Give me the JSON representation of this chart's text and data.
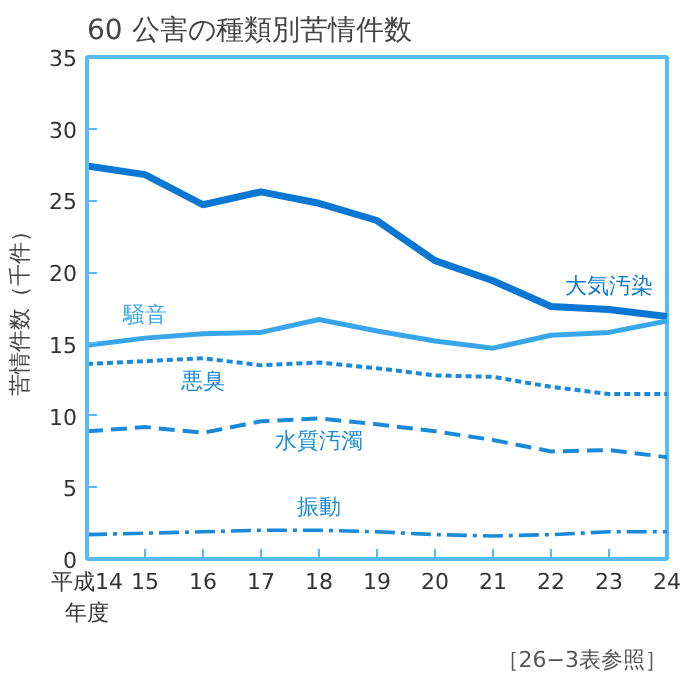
{
  "chart_data": {
    "type": "line",
    "title": "60 公害の種類別苦情件数",
    "ylabel": "苦情件数（千件）",
    "x": [
      14,
      15,
      16,
      17,
      18,
      19,
      20,
      21,
      22,
      23,
      24
    ],
    "xlim": [
      14,
      24
    ],
    "xticks": [
      {
        "value": 14,
        "label": "平成14\n年度"
      },
      15,
      16,
      17,
      18,
      19,
      20,
      21,
      22,
      23,
      24
    ],
    "ylim": [
      0,
      35
    ],
    "yticks": [
      0,
      5,
      10,
      15,
      20,
      25,
      30,
      35
    ],
    "grid": false,
    "legend": false,
    "marker": "none",
    "series": [
      {
        "name": "大気汚染",
        "color": "#0a78d2",
        "line_style": "solid",
        "values": [
          27.4,
          26.8,
          24.7,
          25.6,
          24.8,
          23.6,
          20.8,
          19.4,
          17.6,
          17.4,
          16.9
        ]
      },
      {
        "name": "騒音",
        "color": "#3aa6ea",
        "line_style": "solid",
        "values": [
          14.9,
          15.4,
          15.7,
          15.8,
          16.7,
          15.9,
          15.2,
          14.7,
          15.6,
          15.8,
          16.6
        ]
      },
      {
        "name": "悪臭",
        "color": "#1a8ad8",
        "line_style": "dotted",
        "values": [
          13.6,
          13.8,
          14.0,
          13.5,
          13.7,
          13.3,
          12.8,
          12.7,
          12.0,
          11.5,
          11.5
        ]
      },
      {
        "name": "水質汚濁",
        "color": "#1a8ad8",
        "line_style": "dashed",
        "values": [
          8.9,
          9.2,
          8.8,
          9.6,
          9.8,
          9.4,
          8.9,
          8.3,
          7.5,
          7.6,
          7.1
        ]
      },
      {
        "name": "振動",
        "color": "#1a8ad8",
        "line_style": "dashdot",
        "values": [
          1.7,
          1.8,
          1.9,
          2.0,
          2.0,
          1.9,
          1.7,
          1.6,
          1.7,
          1.9,
          1.9
        ]
      }
    ],
    "annotations": [
      "［26−3表参照］"
    ]
  }
}
